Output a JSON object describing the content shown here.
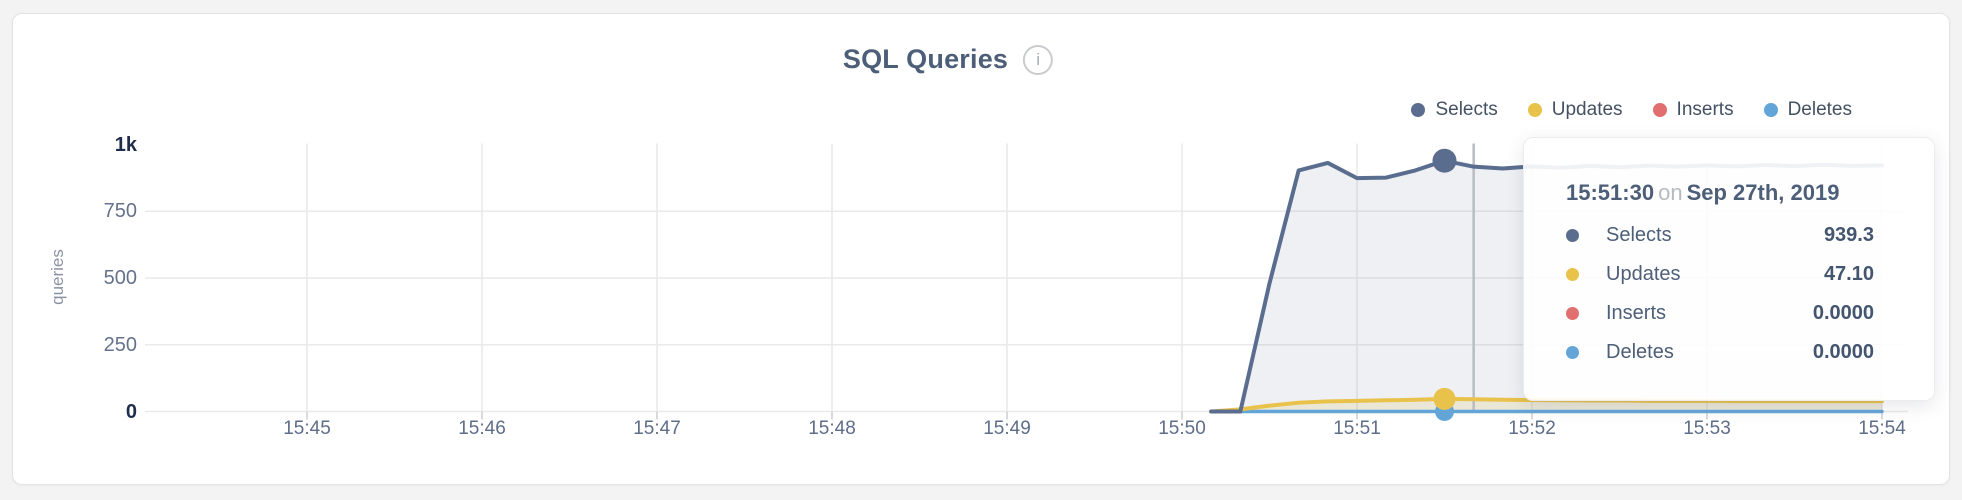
{
  "window": {
    "background": "#f3f3f4",
    "card_background": "#ffffff"
  },
  "header": {
    "title": "SQL Queries",
    "info_icon": "i"
  },
  "legend": [
    {
      "label": "Selects",
      "color": "#5b6d8f"
    },
    {
      "label": "Updates",
      "color": "#e9c24c"
    },
    {
      "label": "Inserts",
      "color": "#e26f6f"
    },
    {
      "label": "Deletes",
      "color": "#64a5d8"
    }
  ],
  "y_axis": {
    "label": "queries",
    "ticks": [
      {
        "label": "1k",
        "value": 1000,
        "emphasized": true
      },
      {
        "label": "750",
        "value": 750,
        "emphasized": false
      },
      {
        "label": "500",
        "value": 500,
        "emphasized": false
      },
      {
        "label": "250",
        "value": 250,
        "emphasized": false
      },
      {
        "label": "0",
        "value": 0,
        "emphasized": true
      }
    ]
  },
  "x_axis": {
    "ticks": [
      "15:45",
      "15:46",
      "15:47",
      "15:48",
      "15:49",
      "15:50",
      "15:51",
      "15:52",
      "15:53",
      "15:54"
    ]
  },
  "tooltip": {
    "time": "15:51:30",
    "conjunction": "on",
    "date": "Sep 27th, 2019",
    "rows": [
      {
        "name": "Selects",
        "value": "939.3",
        "color": "#5b6d8f"
      },
      {
        "name": "Updates",
        "value": "47.10",
        "color": "#e9c24c"
      },
      {
        "name": "Inserts",
        "value": "0.0000",
        "color": "#e26f6f"
      },
      {
        "name": "Deletes",
        "value": "0.0000",
        "color": "#64a5d8"
      }
    ]
  },
  "chart_data": {
    "type": "area",
    "title": "SQL Queries",
    "ylabel": "queries",
    "ylim": [
      0,
      1000
    ],
    "grid": true,
    "legend_position": "top-right",
    "x_tick_labels": [
      "15:45",
      "15:46",
      "15:47",
      "15:48",
      "15:49",
      "15:50",
      "15:51",
      "15:52",
      "15:53",
      "15:54"
    ],
    "x_tick_interval_seconds": 60,
    "time_origin": "15:45:00",
    "hover": {
      "snap_time": "15:51:30",
      "marker_offset_seconds": 390,
      "crosshair_offset_seconds": 400
    },
    "series": [
      {
        "name": "Selects",
        "color": "#5b6d8f",
        "fill": "rgba(93,111,145,0.10)",
        "points": [
          [
            310,
            0
          ],
          [
            320,
            0
          ],
          [
            330,
            480
          ],
          [
            340,
            903
          ],
          [
            350,
            931
          ],
          [
            360,
            874
          ],
          [
            370,
            876
          ],
          [
            380,
            903
          ],
          [
            390,
            939.3
          ],
          [
            400,
            917
          ],
          [
            410,
            910
          ],
          [
            420,
            918
          ],
          [
            430,
            913
          ],
          [
            440,
            920
          ],
          [
            450,
            915
          ],
          [
            460,
            921
          ],
          [
            470,
            917
          ],
          [
            480,
            922
          ],
          [
            490,
            918
          ],
          [
            500,
            923
          ],
          [
            510,
            919
          ],
          [
            520,
            924
          ],
          [
            530,
            920
          ],
          [
            540,
            922
          ]
        ]
      },
      {
        "name": "Updates",
        "color": "#e9c24c",
        "fill": "rgba(234,197,79,0.18)",
        "points": [
          [
            310,
            0
          ],
          [
            320,
            8
          ],
          [
            330,
            22
          ],
          [
            340,
            33
          ],
          [
            350,
            38
          ],
          [
            360,
            40
          ],
          [
            370,
            42
          ],
          [
            380,
            44
          ],
          [
            390,
            47.1
          ],
          [
            400,
            46
          ],
          [
            410,
            44
          ],
          [
            420,
            43
          ],
          [
            430,
            42
          ],
          [
            440,
            41
          ],
          [
            450,
            41
          ],
          [
            460,
            40
          ],
          [
            470,
            40
          ],
          [
            480,
            40
          ],
          [
            490,
            39
          ],
          [
            500,
            39
          ],
          [
            510,
            39
          ],
          [
            520,
            39
          ],
          [
            530,
            39
          ],
          [
            540,
            39
          ]
        ]
      },
      {
        "name": "Inserts",
        "color": "#e26f6f",
        "fill": "none",
        "points": [
          [
            310,
            0
          ],
          [
            390,
            0
          ],
          [
            540,
            0
          ]
        ]
      },
      {
        "name": "Deletes",
        "color": "#64a5d8",
        "fill": "none",
        "points": [
          [
            310,
            0
          ],
          [
            390,
            0
          ],
          [
            540,
            0
          ]
        ]
      }
    ]
  }
}
